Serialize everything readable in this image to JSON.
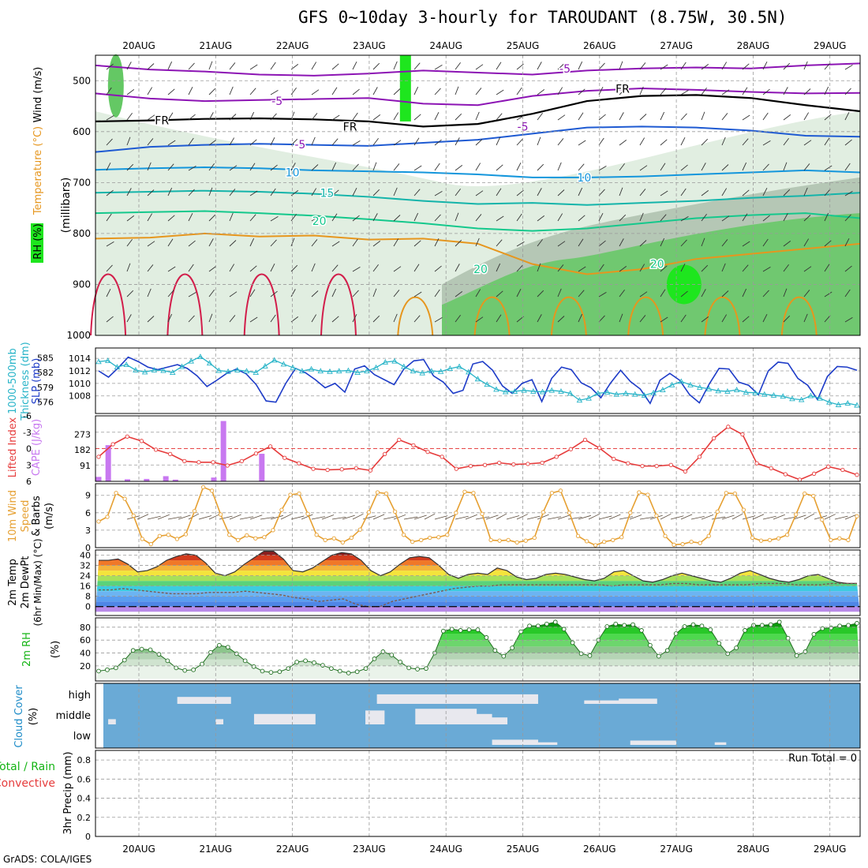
{
  "title": "GFS 0~10day 3-hourly for TAROUDANT (8.75W, 30.5N)",
  "credit": "GrADS: COLA/IGES",
  "colors": {
    "wind_contour": "#8c14b4",
    "freezing_line": "#000000",
    "blue_contour": "#1e5ad2",
    "cyan_contour": "#1496dc",
    "teal_contour": "#14b4aa",
    "green_contour": "#14c88c",
    "orange_contour": "#e6961e",
    "red_contour": "#d21e4b",
    "rh_light": "#dcebdc",
    "rh_mid": "#a5b9a5",
    "rh_green": "#64c864",
    "rh_bright": "#1ee61e",
    "slp_line": "#1e3cc8",
    "thickness_line": "#28b4c8",
    "lifted_line": "#e63c3c",
    "cape_bar": "#c878f0",
    "wind_speed_line": "#e6a032",
    "cloud_bg": "#6aaad6",
    "cloud_fill": "#e8e8ee"
  },
  "chart_data": [
    {
      "type": "heatmap",
      "panel": "upper-air",
      "ylabel": [
        "RH (%)",
        "Temperature (°C)",
        "Wind (m/s)",
        "(millibars)"
      ],
      "x_labels": [
        "20AUG",
        "21AUG",
        "22AUG",
        "23AUG",
        "24AUG",
        "25AUG",
        "26AUG",
        "27AUG",
        "28AUG",
        "29AUG"
      ],
      "ylim": [
        1000,
        450
      ],
      "y_ticks": [
        500,
        600,
        700,
        800,
        900,
        1000
      ],
      "contour_labels": [
        {
          "text": "-5",
          "x": 6.55,
          "y": 476
        },
        {
          "text": "FR",
          "x": 7.3,
          "y": 516
        },
        {
          "text": "-5",
          "x": 2.8,
          "y": 540
        },
        {
          "text": "FR",
          "x": 1.3,
          "y": 578
        },
        {
          "text": "FR",
          "x": 3.75,
          "y": 590
        },
        {
          "text": "-5",
          "x": 6.0,
          "y": 590
        },
        {
          "text": "-5",
          "x": 3.1,
          "y": 625
        },
        {
          "text": "10",
          "x": 3.0,
          "y": 680
        },
        {
          "text": "10",
          "x": 6.8,
          "y": 690
        },
        {
          "text": "15",
          "x": 3.45,
          "y": 720
        },
        {
          "text": "20",
          "x": 3.35,
          "y": 775
        },
        {
          "text": "20",
          "x": 5.45,
          "y": 870
        },
        {
          "text": "20",
          "x": 7.75,
          "y": 860
        }
      ]
    },
    {
      "type": "line",
      "panel": "slp-thickness",
      "ylabel": [
        "1000-500mb",
        "Thickness (dm)",
        "SLP (mb)"
      ],
      "y_ticks_left": [
        576,
        579,
        582,
        585
      ],
      "y_ticks_right": [
        1008,
        1010,
        1012,
        1014
      ],
      "series": [
        {
          "name": "SLP (mb)",
          "axis": "right",
          "values": [
            1012,
            1011,
            1012.5,
            1014.2,
            1013.5,
            1012.6,
            1012.2,
            1012.6,
            1013,
            1012.4,
            1011.2,
            1009.5,
            1010.5,
            1011.6,
            1012.3,
            1011.5,
            1009.8,
            1007.2,
            1007,
            1010,
            1012.4,
            1011.7,
            1010.6,
            1009.3,
            1010,
            1008.6,
            1012.3,
            1012.8,
            1011.4,
            1010.6,
            1009.8,
            1012.3,
            1013.6,
            1013.8,
            1011.2,
            1010.2,
            1008.4,
            1008.9,
            1013.1,
            1013.5,
            1012.1,
            1009.6,
            1008.4,
            1010,
            1010.6,
            1007.1,
            1010.8,
            1012.6,
            1012.2,
            1010.1,
            1009.3,
            1007.7,
            1010.1,
            1012.1,
            1010.3,
            1009.1,
            1006.8,
            1010.5,
            1011.6,
            1010.5,
            1008.2,
            1006.9,
            1009.9,
            1012.4,
            1012.3,
            1010.2,
            1009.7,
            1008.2,
            1012,
            1013.4,
            1013.2,
            1010.8,
            1009.7,
            1007.4,
            1011.1,
            1012.7,
            1012.6,
            1012.1
          ]
        },
        {
          "name": "1000-500mb Thickness (dm)",
          "axis": "left",
          "values": [
            584.2,
            584.4,
            583.1,
            583.6,
            582.5,
            582.1,
            582.5,
            582.4,
            582,
            583.2,
            584.3,
            585.2,
            583.9,
            582.4,
            582.2,
            582.5,
            582.3,
            582,
            583.3,
            584.5,
            583.7,
            583,
            582.3,
            582.7,
            582.3,
            582.2,
            582.3,
            582.4,
            582,
            582.3,
            583,
            584.1,
            584.3,
            583.2,
            582.3,
            581.9,
            582.3,
            582.2,
            582.8,
            583.2,
            582.1,
            580.7,
            579.6,
            578.6,
            578.1,
            578.2,
            578.4,
            578.2,
            578.1,
            578.4,
            578.2,
            577.8,
            576.4,
            576.8,
            577.8,
            578,
            577.6,
            577.8,
            577.6,
            577.4,
            577.9,
            578.5,
            579.5,
            580.2,
            579.5,
            579,
            578.7,
            578.3,
            578.2,
            578.5,
            578,
            577.9,
            577.6,
            577.4,
            577.2,
            576.7,
            576.5,
            577.3,
            576.8,
            576,
            575.5,
            575.8,
            575.4
          ]
        }
      ]
    },
    {
      "type": "bar",
      "panel": "lifted-cape",
      "ylabel": [
        "Lifted Index",
        "CAPE (J/kg)"
      ],
      "y_ticks_left": [
        "-6",
        "-3",
        "0",
        "3",
        "6"
      ],
      "y_ticks_right": [
        91,
        182,
        273
      ],
      "series": [
        {
          "name": "Lifted Index",
          "values": [
            1.5,
            -0.8,
            -2.2,
            -1.4,
            0.2,
            1,
            2.3,
            2.5,
            2.5,
            3.1,
            2.3,
            0.9,
            -0.4,
            1.7,
            2.7,
            3.7,
            3.9,
            3.8,
            3.6,
            4,
            1,
            -1.6,
            -0.6,
            0.6,
            1.5,
            3.7,
            3.2,
            3,
            2.6,
            2.9,
            2.8,
            2.6,
            1.5,
            0.1,
            -1.6,
            -0.1,
            1.9,
            2.7,
            3.2,
            3.2,
            3,
            4.2,
            1.5,
            -1.9,
            -4,
            -2.6,
            2.7,
            3.6,
            4.7,
            5.7,
            4.6,
            3.3,
            3.9,
            4.8
          ]
        },
        {
          "name": "CAPE (J/kg)",
          "values": [
            26,
            210,
            0,
            12,
            0,
            14,
            0,
            30,
            10,
            0,
            0,
            0,
            22,
            350,
            0,
            0,
            0,
            160,
            0,
            0
          ]
        }
      ]
    },
    {
      "type": "line",
      "panel": "wind-10m",
      "ylabel": [
        "10m Wind",
        "Speed",
        "& Barbs",
        "(m/s)"
      ],
      "y_ticks": [
        0,
        3,
        6,
        9
      ],
      "ylim": [
        0,
        11
      ],
      "series": [
        {
          "name": "10m Wind Speed",
          "values": [
            4.5,
            5.3,
            9.4,
            8.4,
            5.5,
            1.5,
            0.6,
            2,
            2.2,
            1.5,
            2.3,
            6.3,
            10.4,
            9.8,
            5.7,
            2.2,
            1.3,
            2.1,
            1.6,
            1.8,
            3,
            6.5,
            9.1,
            9.3,
            5.8,
            2.2,
            1.3,
            1.6,
            0.9,
            1.7,
            3.1,
            6.1,
            9.5,
            9.3,
            6.2,
            2.2,
            1,
            1.3,
            1.7,
            1.8,
            2.2,
            6,
            9.6,
            9.4,
            5.8,
            1.3,
            1.2,
            1.3,
            0.9,
            1.2,
            1.7,
            6.1,
            9.4,
            9.8,
            6,
            2,
            1.1,
            0.4,
            1,
            1.3,
            1.8,
            6,
            9.5,
            9.1,
            5.5,
            2,
            0.5,
            0.6,
            1,
            0.8,
            2,
            6.2,
            9.4,
            9.3,
            6.5,
            1.7,
            1.2,
            1.3,
            1.6,
            2.2,
            5.7,
            9.3,
            8.9,
            4.8,
            1.3,
            1.6,
            1.3,
            5.4
          ]
        }
      ]
    },
    {
      "type": "area",
      "panel": "temp-2m",
      "ylabel": [
        "2m Temp",
        "2m DewPt",
        "(6hr Min/Max) (°C)"
      ],
      "y_ticks": [
        0,
        8,
        16,
        24,
        32,
        40
      ],
      "series": [
        {
          "name": "2m Temp",
          "values": [
            36,
            36,
            37,
            33,
            27,
            28,
            31,
            36,
            39,
            41,
            40,
            34,
            26,
            24,
            27,
            33,
            38,
            43,
            43,
            37,
            28,
            27,
            30,
            35,
            40,
            42,
            41,
            36,
            28,
            24,
            27,
            33,
            38,
            39,
            38,
            32,
            25,
            22,
            25,
            26,
            25,
            30,
            28,
            23,
            21,
            22,
            25,
            26,
            25,
            23,
            21,
            20,
            22,
            27,
            28,
            24,
            20,
            19,
            21,
            24,
            26,
            24,
            22,
            20,
            19,
            22,
            26,
            28,
            25,
            22,
            20,
            19,
            21,
            24,
            25,
            22,
            19,
            18,
            18
          ]
        },
        {
          "name": "2m DewPt",
          "values": [
            13,
            13,
            14,
            13,
            12,
            11,
            10,
            10,
            10,
            11,
            11,
            11,
            12,
            11,
            10,
            9,
            7,
            6,
            4,
            5,
            6,
            2,
            0,
            0,
            4,
            6,
            8,
            10,
            12,
            14,
            15,
            16,
            16,
            17,
            17,
            17,
            17,
            17,
            17,
            17,
            17,
            17,
            16,
            17,
            17,
            17,
            17,
            18,
            18,
            17,
            17,
            17,
            17,
            17,
            18,
            18,
            18,
            17,
            17,
            17,
            18,
            18,
            18
          ]
        }
      ]
    },
    {
      "type": "area",
      "panel": "rh-2m",
      "ylabel": [
        "2m RH",
        "(%)"
      ],
      "y_ticks": [
        20,
        40,
        60,
        80
      ],
      "series": [
        {
          "name": "2m RH",
          "values": [
            12,
            14,
            17,
            29,
            44,
            46,
            45,
            38,
            28,
            17,
            13,
            14,
            23,
            41,
            52,
            49,
            39,
            28,
            19,
            12,
            10,
            11,
            16,
            26,
            28,
            25,
            21,
            16,
            12,
            9,
            11,
            16,
            31,
            42,
            37,
            26,
            17,
            15,
            16,
            40,
            74,
            77,
            75,
            76,
            76,
            64,
            44,
            35,
            48,
            73,
            82,
            82,
            85,
            88,
            77,
            56,
            39,
            36,
            60,
            81,
            85,
            83,
            84,
            75,
            52,
            35,
            44,
            70,
            81,
            84,
            82,
            76,
            55,
            39,
            48,
            75,
            83,
            83,
            84,
            88,
            63,
            36,
            42,
            69,
            78,
            79,
            82,
            83,
            86
          ]
        }
      ]
    },
    {
      "type": "heatmap",
      "panel": "cloud-cover",
      "ylabel": [
        "Cloud Cover",
        "(%)"
      ],
      "y_ticks": [
        "high",
        "middle",
        "low"
      ]
    },
    {
      "type": "bar",
      "panel": "precip",
      "ylabel": [
        "Total / Rain",
        "Convective",
        "3hr Precip (mm)"
      ],
      "y_ticks": [
        0,
        0.2,
        0.4,
        0.6,
        0.8
      ],
      "ylim": [
        0,
        0.9
      ],
      "annotation": "Run Total = 0",
      "series": [
        {
          "name": "Total / Rain",
          "values": []
        },
        {
          "name": "Convective",
          "values": []
        }
      ]
    }
  ]
}
